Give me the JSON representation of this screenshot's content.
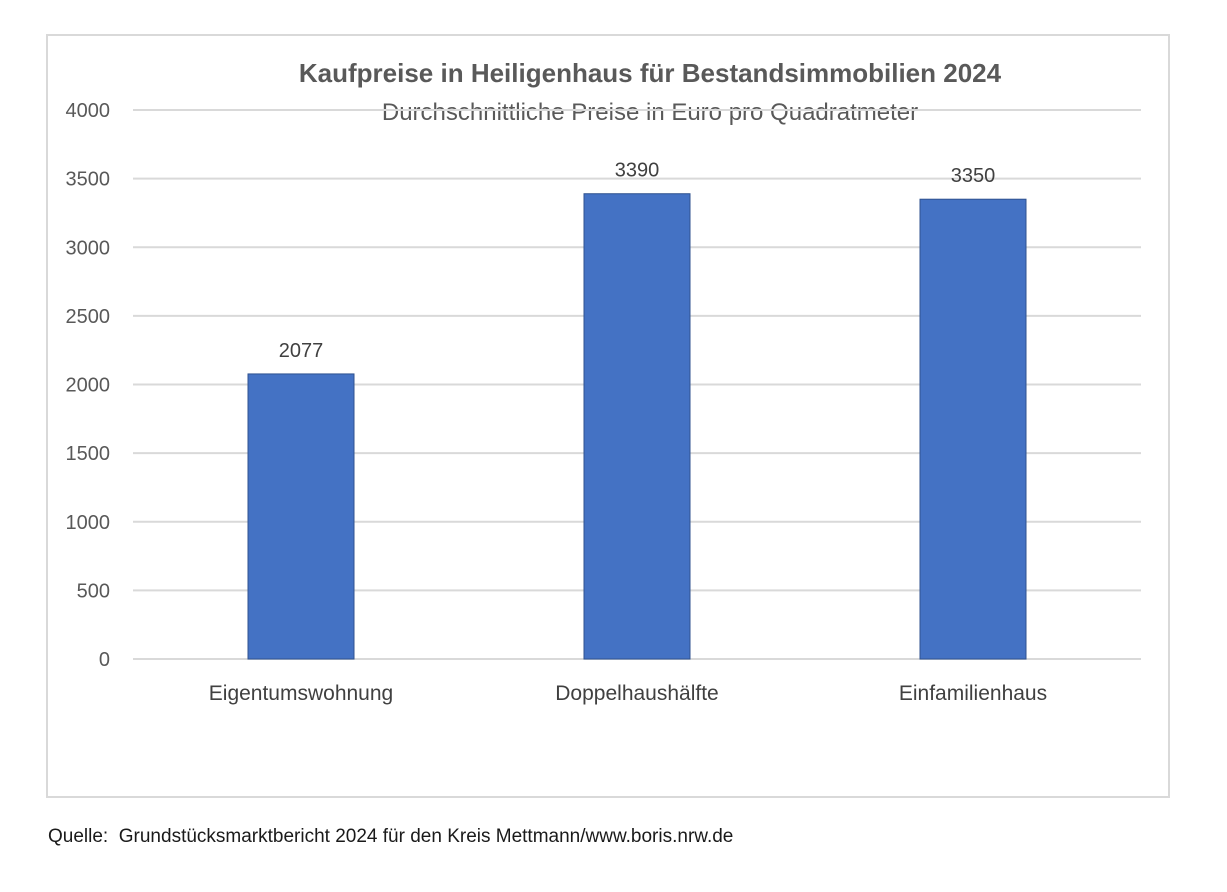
{
  "chart_data": {
    "type": "bar",
    "title": "Kaufpreise in Heiligenhaus für Bestandsimmobilien 2024",
    "subtitle": "Durchschnittliche Preise in Euro pro Quadratmeter",
    "categories": [
      "Eigentumswohnung",
      "Doppelhaushälfte",
      "Einfamilienhaus"
    ],
    "values": [
      2077,
      3390,
      3350
    ],
    "data_labels": [
      "2077",
      "3390",
      "3350"
    ],
    "ylim": [
      0,
      4000
    ],
    "yticks": [
      0,
      500,
      1000,
      1500,
      2000,
      2500,
      3000,
      3500,
      4000
    ],
    "ytick_labels": [
      "0",
      "500",
      "1000",
      "1500",
      "2000",
      "2500",
      "3000",
      "3500",
      "4000"
    ],
    "grid": true,
    "legend": "none",
    "bar_color": "#4472c4",
    "grid_color": "#d9d9d9"
  },
  "source": "Quelle:  Grundstücksmarktbericht 2024 für den Kreis Mettmann/www.boris.nrw.de"
}
